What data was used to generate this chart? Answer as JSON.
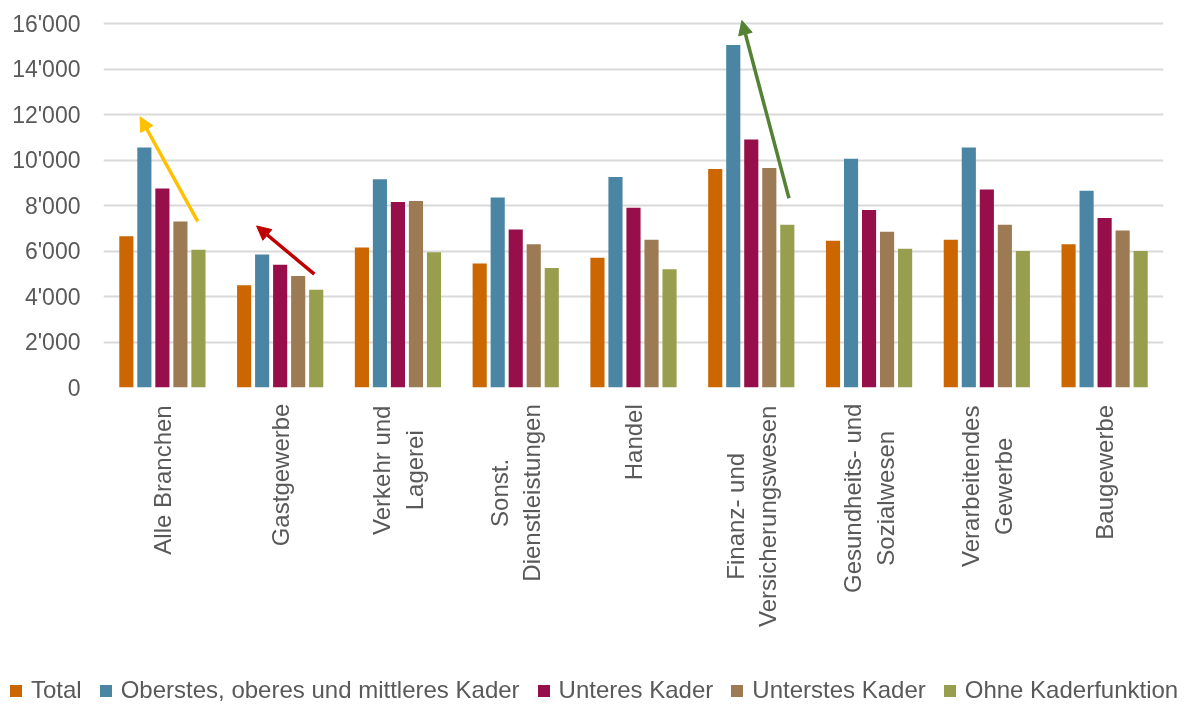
{
  "chart_data": {
    "type": "bar",
    "categories": [
      "Alle Branchen",
      "Gastgewerbe",
      "Verkehr und Lagerei",
      "Sonst. Dienstleistungen",
      "Handel",
      "Finanz- und Versicherungswesen",
      "Gesundheits- und Sozialwesen",
      "Verarbeitendes Gewerbe",
      "Baugewerbe"
    ],
    "series": [
      {
        "name": "Total",
        "color": "#cc6600",
        "values": [
          6650,
          4500,
          6150,
          5450,
          5700,
          9600,
          6450,
          6500,
          6300
        ]
      },
      {
        "name": "Oberstes, oberes und mittleres Kader",
        "color": "#4a86a3",
        "values": [
          10550,
          5850,
          9150,
          8350,
          9250,
          15050,
          10050,
          10550,
          8650
        ]
      },
      {
        "name": "Unteres Kader",
        "color": "#960f4a",
        "values": [
          8750,
          5400,
          8150,
          6950,
          7900,
          10900,
          7800,
          8700,
          7450
        ]
      },
      {
        "name": "Unterstes Kader",
        "color": "#9c7a53",
        "values": [
          7300,
          4900,
          8200,
          6300,
          6500,
          9650,
          6850,
          7150,
          6900
        ]
      },
      {
        "name": "Ohne Kaderfunktion",
        "color": "#979e4d",
        "values": [
          6050,
          4300,
          5950,
          5250,
          5200,
          7150,
          6100,
          6000,
          6000
        ]
      }
    ],
    "ylim": [
      0,
      16000
    ],
    "yticks": [
      0,
      {
        "value": 2000,
        "label": "2'000"
      },
      {
        "value": 4000,
        "label": "4'000"
      },
      {
        "value": 6000,
        "label": "6'000"
      },
      {
        "value": 8000,
        "label": "8'000"
      },
      {
        "value": 10000,
        "label": "10'000"
      },
      {
        "value": 12000,
        "label": "12'000"
      },
      {
        "value": 14000,
        "label": "14'000"
      },
      {
        "value": 16000,
        "label": "16'000"
      }
    ],
    "grid": "y",
    "legend": "bottom"
  }
}
